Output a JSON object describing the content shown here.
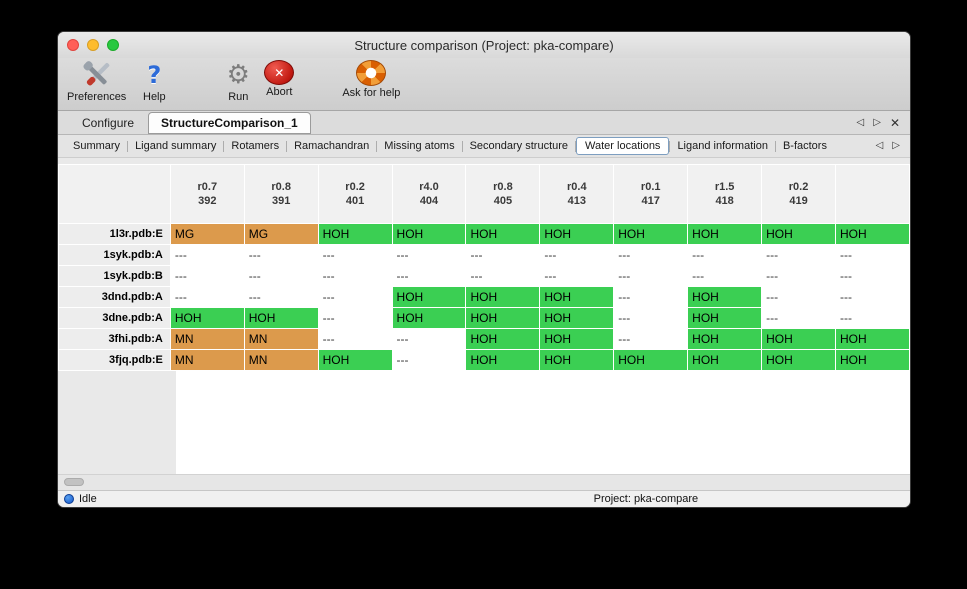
{
  "window": {
    "title": "Structure comparison (Project: pka-compare)"
  },
  "icons": {
    "nav_left": "◁",
    "nav_right": "▷",
    "close": "✕",
    "run_gear": "⚙",
    "help_question": "?",
    "abort_cross": "✕"
  },
  "toolbar": {
    "items": [
      {
        "id": "preferences",
        "label": "Preferences",
        "icon": "preferences-tools-icon"
      },
      {
        "id": "help",
        "label": "Help",
        "icon": "help-question-icon"
      },
      {
        "id": "run",
        "label": "Run",
        "icon": "run-gear-icon"
      },
      {
        "id": "abort",
        "label": "Abort",
        "icon": "abort-icon"
      },
      {
        "id": "ask-for-help",
        "label": "Ask for help",
        "icon": "lifebuoy-icon"
      }
    ]
  },
  "tabs": [
    {
      "label": "Configure",
      "active": false
    },
    {
      "label": "StructureComparison_1",
      "active": true
    }
  ],
  "subtabs": {
    "items": [
      {
        "label": "Summary",
        "selected": false
      },
      {
        "label": "Ligand summary",
        "selected": false
      },
      {
        "label": "Rotamers",
        "selected": false
      },
      {
        "label": "Ramachandran",
        "selected": false
      },
      {
        "label": "Missing atoms",
        "selected": false
      },
      {
        "label": "Secondary structure",
        "selected": false
      },
      {
        "label": "Water locations",
        "selected": true
      },
      {
        "label": "Ligand information",
        "selected": false
      },
      {
        "label": "B-factors",
        "selected": false
      }
    ]
  },
  "table": {
    "columns": [
      {
        "line1": "r0.7",
        "line2": "392"
      },
      {
        "line1": "r0.8",
        "line2": "391"
      },
      {
        "line1": "r0.2",
        "line2": "401"
      },
      {
        "line1": "r4.0",
        "line2": "404"
      },
      {
        "line1": "r0.8",
        "line2": "405"
      },
      {
        "line1": "r0.4",
        "line2": "413"
      },
      {
        "line1": "r0.1",
        "line2": "417"
      },
      {
        "line1": "r1.5",
        "line2": "418"
      },
      {
        "line1": "r0.2",
        "line2": "419"
      },
      {
        "line1": "",
        "line2": ""
      }
    ],
    "rows": [
      {
        "label": "1l3r.pdb:E",
        "cells": [
          {
            "text": "MG",
            "type": "metal"
          },
          {
            "text": "MG",
            "type": "metal"
          },
          {
            "text": "HOH",
            "type": "water"
          },
          {
            "text": "HOH",
            "type": "water"
          },
          {
            "text": "HOH",
            "type": "water"
          },
          {
            "text": "HOH",
            "type": "water"
          },
          {
            "text": "HOH",
            "type": "water"
          },
          {
            "text": "HOH",
            "type": "water"
          },
          {
            "text": "HOH",
            "type": "water"
          },
          {
            "text": "HOH",
            "type": "water"
          }
        ]
      },
      {
        "label": "1syk.pdb:A",
        "cells": [
          {
            "text": "---",
            "type": "empty"
          },
          {
            "text": "---",
            "type": "empty"
          },
          {
            "text": "---",
            "type": "empty"
          },
          {
            "text": "---",
            "type": "empty"
          },
          {
            "text": "---",
            "type": "empty"
          },
          {
            "text": "---",
            "type": "empty"
          },
          {
            "text": "---",
            "type": "empty"
          },
          {
            "text": "---",
            "type": "empty"
          },
          {
            "text": "---",
            "type": "empty"
          },
          {
            "text": "---",
            "type": "empty"
          }
        ]
      },
      {
        "label": "1syk.pdb:B",
        "cells": [
          {
            "text": "---",
            "type": "empty"
          },
          {
            "text": "---",
            "type": "empty"
          },
          {
            "text": "---",
            "type": "empty"
          },
          {
            "text": "---",
            "type": "empty"
          },
          {
            "text": "---",
            "type": "empty"
          },
          {
            "text": "---",
            "type": "empty"
          },
          {
            "text": "---",
            "type": "empty"
          },
          {
            "text": "---",
            "type": "empty"
          },
          {
            "text": "---",
            "type": "empty"
          },
          {
            "text": "---",
            "type": "empty"
          }
        ]
      },
      {
        "label": "3dnd.pdb:A",
        "cells": [
          {
            "text": "---",
            "type": "empty"
          },
          {
            "text": "---",
            "type": "empty"
          },
          {
            "text": "---",
            "type": "empty"
          },
          {
            "text": "HOH",
            "type": "water"
          },
          {
            "text": "HOH",
            "type": "water"
          },
          {
            "text": "HOH",
            "type": "water"
          },
          {
            "text": "---",
            "type": "empty"
          },
          {
            "text": "HOH",
            "type": "water"
          },
          {
            "text": "---",
            "type": "empty"
          },
          {
            "text": "---",
            "type": "empty"
          }
        ]
      },
      {
        "label": "3dne.pdb:A",
        "cells": [
          {
            "text": "HOH",
            "type": "water"
          },
          {
            "text": "HOH",
            "type": "water"
          },
          {
            "text": "---",
            "type": "empty"
          },
          {
            "text": "HOH",
            "type": "water"
          },
          {
            "text": "HOH",
            "type": "water"
          },
          {
            "text": "HOH",
            "type": "water"
          },
          {
            "text": "---",
            "type": "empty"
          },
          {
            "text": "HOH",
            "type": "water"
          },
          {
            "text": "---",
            "type": "empty"
          },
          {
            "text": "---",
            "type": "empty"
          }
        ]
      },
      {
        "label": "3fhi.pdb:A",
        "cells": [
          {
            "text": "MN",
            "type": "metal"
          },
          {
            "text": "MN",
            "type": "metal"
          },
          {
            "text": "---",
            "type": "empty"
          },
          {
            "text": "---",
            "type": "empty"
          },
          {
            "text": "HOH",
            "type": "water"
          },
          {
            "text": "HOH",
            "type": "water"
          },
          {
            "text": "---",
            "type": "empty"
          },
          {
            "text": "HOH",
            "type": "water"
          },
          {
            "text": "HOH",
            "type": "water"
          },
          {
            "text": "HOH",
            "type": "water"
          }
        ]
      },
      {
        "label": "3fjq.pdb:E",
        "cells": [
          {
            "text": "MN",
            "type": "metal"
          },
          {
            "text": "MN",
            "type": "metal"
          },
          {
            "text": "HOH",
            "type": "water"
          },
          {
            "text": "---",
            "type": "empty"
          },
          {
            "text": "HOH",
            "type": "water"
          },
          {
            "text": "HOH",
            "type": "water"
          },
          {
            "text": "HOH",
            "type": "water"
          },
          {
            "text": "HOH",
            "type": "water"
          },
          {
            "text": "HOH",
            "type": "water"
          },
          {
            "text": "HOH",
            "type": "water"
          }
        ]
      }
    ]
  },
  "colors": {
    "water_cell": "#3bcf53",
    "metal_cell": "#dc9a4c",
    "status_dot": "#1254c8"
  },
  "statusbar": {
    "status": "Idle",
    "project": "Project: pka-compare"
  }
}
